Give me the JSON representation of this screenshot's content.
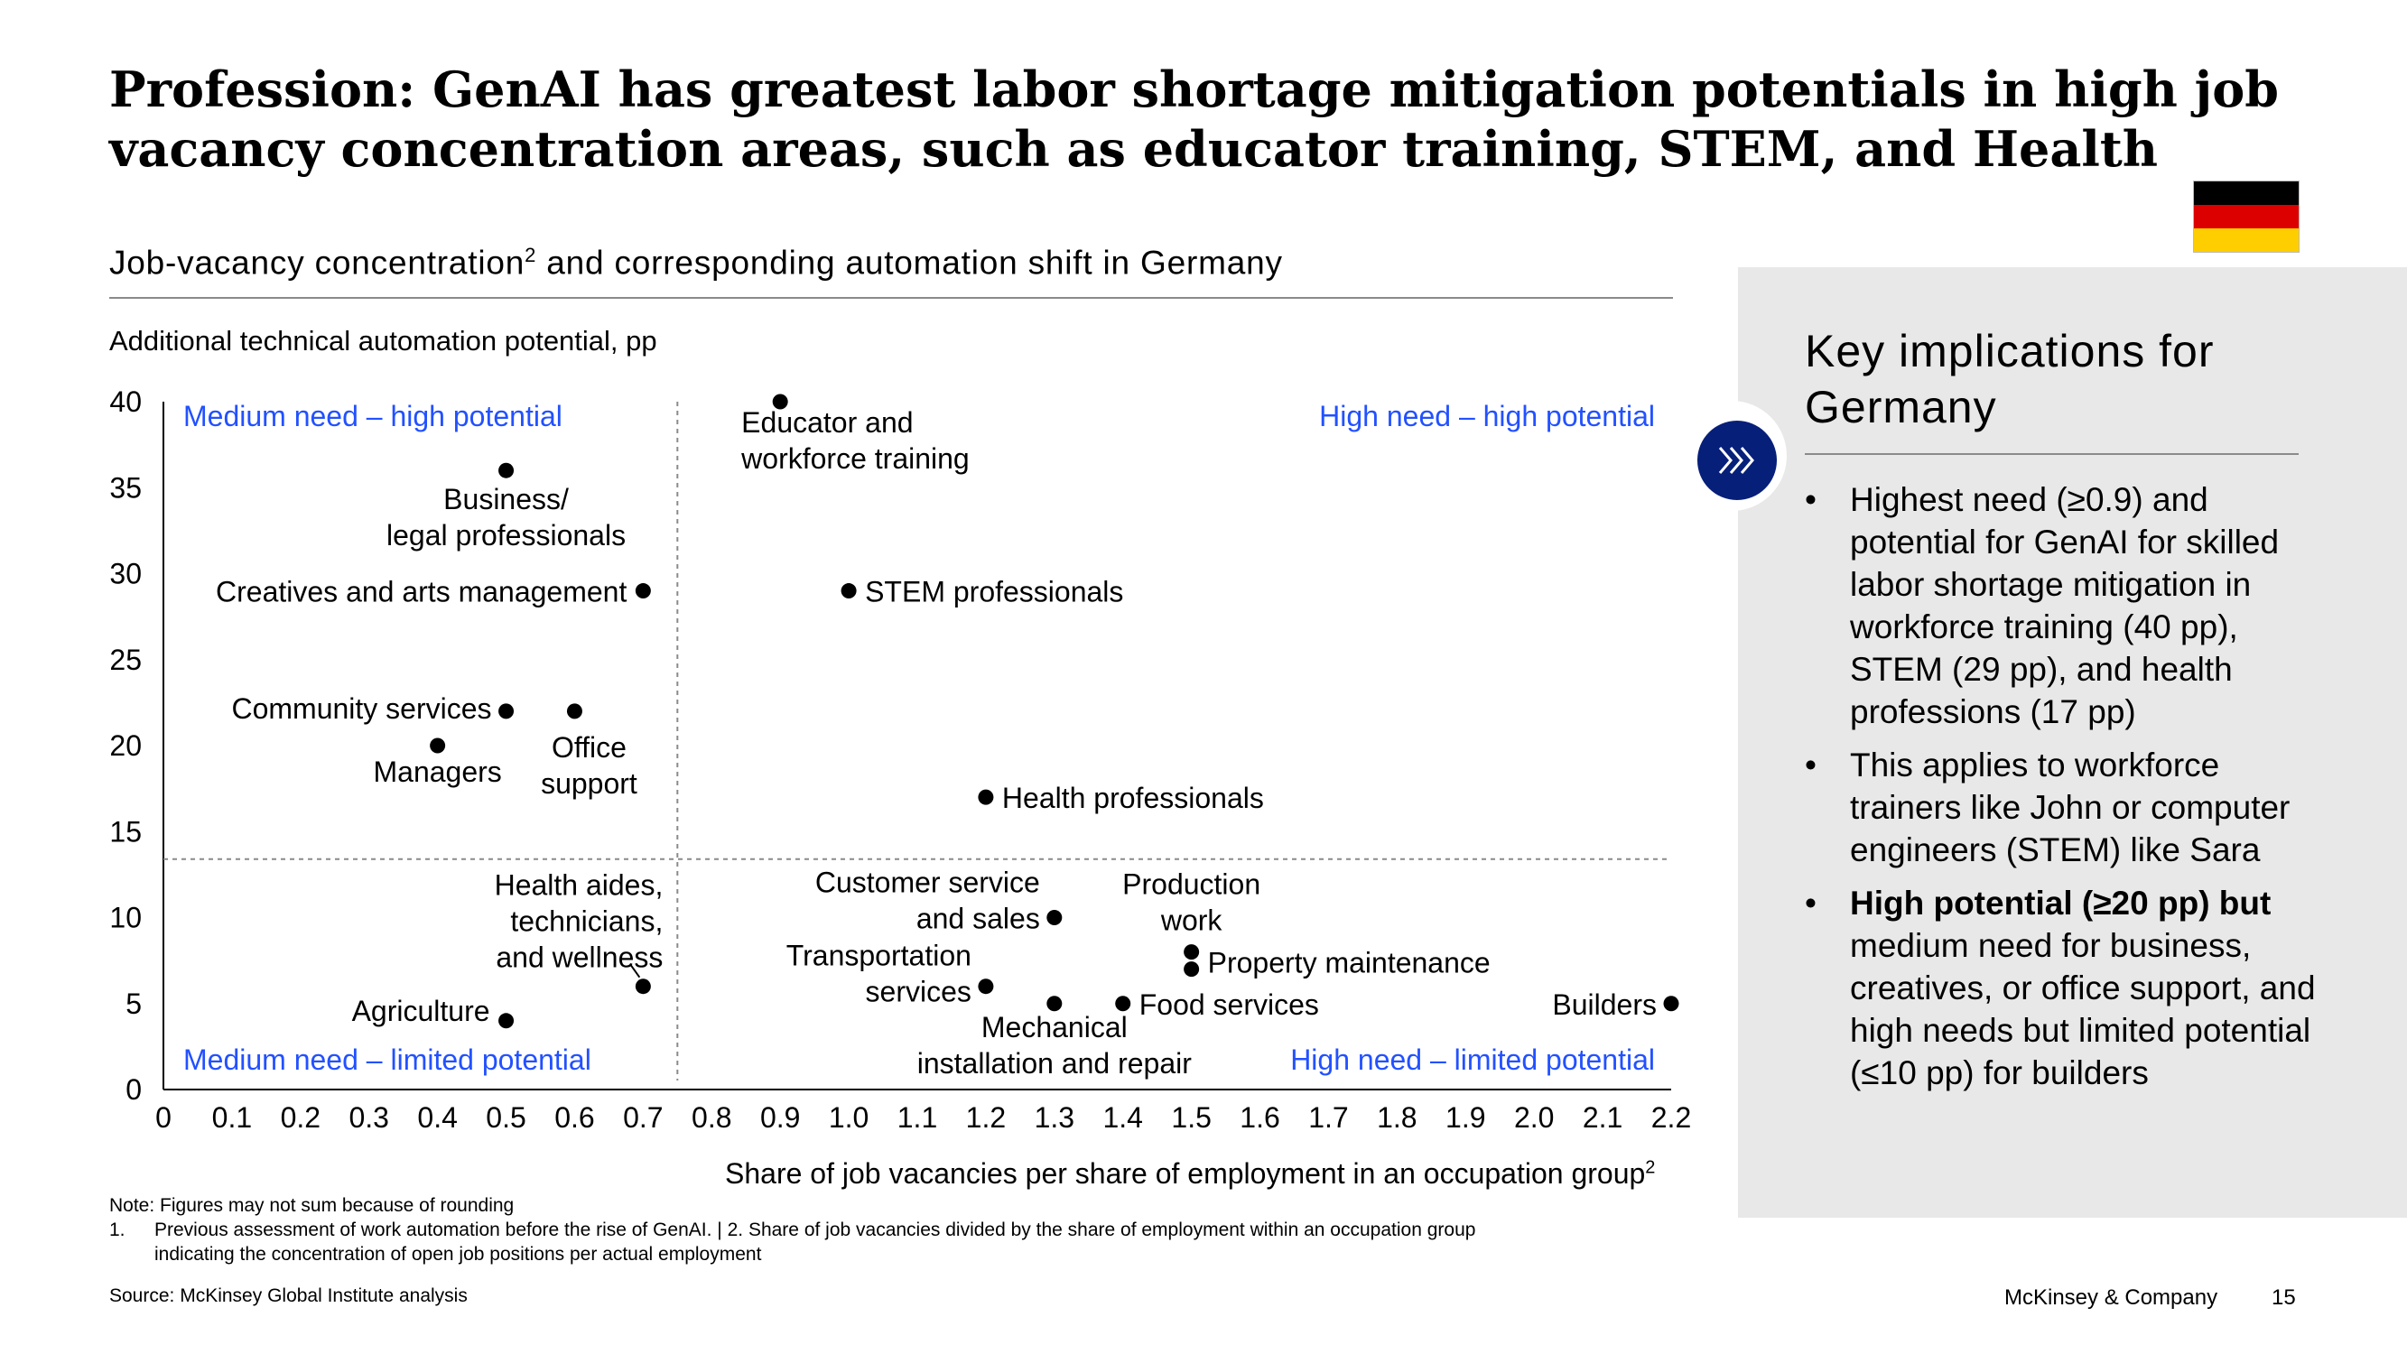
{
  "title": "Profession: GenAI has greatest labor shortage mitigation potentials in high job vacancy concentration areas, such as educator training, STEM, and Health",
  "flag_colors": [
    "#000000",
    "#dd0000",
    "#ffce00"
  ],
  "subtitle": {
    "text": "Job-vacancy concentration",
    "sup": "2",
    "tail": " and corresponding automation shift in Germany"
  },
  "chart_data": {
    "type": "scatter",
    "ylabel": "Additional technical automation potential, pp",
    "xlabel": "Share of job vacancies per share of employment in an occupation group",
    "xlabel_sup": "2",
    "xlim": [
      0,
      2.2
    ],
    "ylim": [
      0,
      40
    ],
    "x_ticks": [
      "0",
      "0.1",
      "0.2",
      "0.3",
      "0.4",
      "0.5",
      "0.6",
      "0.7",
      "0.8",
      "0.9",
      "1.0",
      "1.1",
      "1.2",
      "1.3",
      "1.4",
      "1.5",
      "1.6",
      "1.7",
      "1.8",
      "1.9",
      "2.0",
      "2.1",
      "2.2"
    ],
    "y_ticks": [
      "0",
      "5",
      "10",
      "15",
      "20",
      "25",
      "30",
      "35",
      "40"
    ],
    "quadrant_dividers": {
      "x": 0.75,
      "y": 13.4
    },
    "quadrant_labels": {
      "top_left": "Medium need – high potential",
      "top_right": "High need – high potential",
      "bottom_left": "Medium need – limited potential",
      "bottom_right": "High need – limited potential"
    },
    "grid": false,
    "points": [
      {
        "label": [
          "Educator and",
          "workforce training"
        ],
        "x": 0.9,
        "y": 40
      },
      {
        "label": [
          "Business/",
          "legal professionals"
        ],
        "x": 0.5,
        "y": 36
      },
      {
        "label": [
          "Creatives and arts management"
        ],
        "x": 0.7,
        "y": 29
      },
      {
        "label": [
          "STEM professionals"
        ],
        "x": 1.0,
        "y": 29
      },
      {
        "label": [
          "Community services"
        ],
        "x": 0.5,
        "y": 22
      },
      {
        "label": [
          "Office",
          "support"
        ],
        "x": 0.6,
        "y": 22
      },
      {
        "label": [
          "Managers"
        ],
        "x": 0.4,
        "y": 20
      },
      {
        "label": [
          "Health professionals"
        ],
        "x": 1.2,
        "y": 17
      },
      {
        "label": [
          "Customer service",
          "and sales"
        ],
        "x": 1.3,
        "y": 10
      },
      {
        "label": [
          "Production",
          "work"
        ],
        "x": 1.5,
        "y": 8
      },
      {
        "label": [
          "Property maintenance"
        ],
        "x": 1.5,
        "y": 7
      },
      {
        "label": [
          "Health aides,",
          "technicians,",
          "and wellness"
        ],
        "x": 0.7,
        "y": 6
      },
      {
        "label": [
          "Transportation",
          "services"
        ],
        "x": 1.2,
        "y": 6
      },
      {
        "label": [
          "Mechanical",
          "installation and repair"
        ],
        "x": 1.3,
        "y": 5
      },
      {
        "label": [
          "Food services"
        ],
        "x": 1.4,
        "y": 5
      },
      {
        "label": [
          "Builders"
        ],
        "x": 2.2,
        "y": 5
      },
      {
        "label": [
          "Agriculture"
        ],
        "x": 0.5,
        "y": 4
      }
    ]
  },
  "notes": {
    "note": "Note: Figures may not sum because of rounding",
    "footnote_num": "1.",
    "footnote": "Previous assessment of work automation before the rise of GenAI. | 2. Share of job vacancies divided by the share of employment within an occupation group indicating the concentration of open job positions per actual employment",
    "source": "Source: McKinsey Global Institute analysis"
  },
  "footer": {
    "brand": "McKinsey & Company",
    "page": "15"
  },
  "panel": {
    "icon": "double-chevron-right-icon",
    "title": "Key implications for Germany",
    "bullet_char": "•",
    "bullets": [
      {
        "bold": "",
        "text": "Highest need (≥0.9) and potential for GenAI for skilled labor shortage mitigation in workforce training (40 pp), STEM (29 pp), and health professions (17 pp)"
      },
      {
        "bold": "",
        "text": "This applies to workforce trainers like John or computer engineers (STEM) like Sara"
      },
      {
        "bold": "High potential (≥20 pp) but",
        "text": " medium need for business, creatives, or office support, and high needs but limited potential (≤10 pp) for builders"
      }
    ],
    "colors": {
      "accent": "#061f79",
      "panel_bg": "#e8e8e8",
      "quadrant_label": "#2251ff"
    }
  }
}
